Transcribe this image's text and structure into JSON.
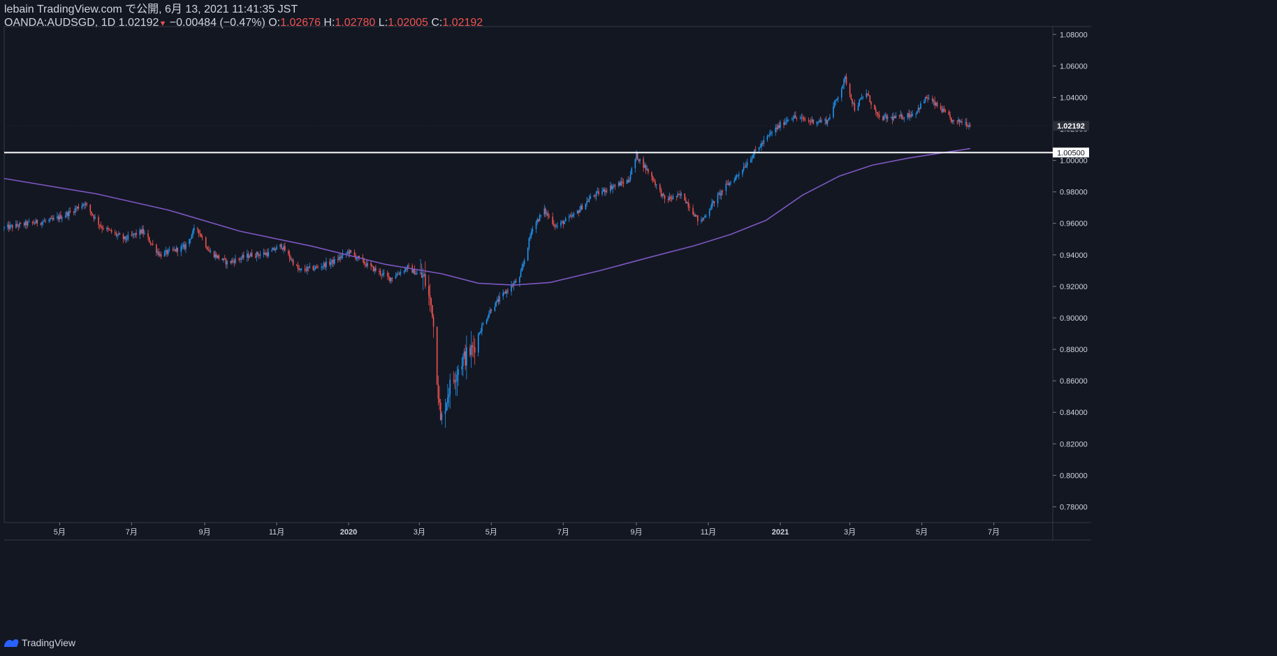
{
  "header": {
    "published": "lebain TradingView.com で公開, 6月 13, 2021 11:41:35 JST",
    "symbol": "OANDA:AUDSGD, 1D",
    "last": "1.02192",
    "change": "−0.00484 (−0.47%)",
    "o_label": "O:",
    "o": "1.02676",
    "h_label": "H:",
    "h": "1.02780",
    "l_label": "L:",
    "l": "1.02005",
    "c_label": "C:",
    "c": "1.02192"
  },
  "footer": {
    "brand": "TradingView"
  },
  "colors": {
    "background": "#131722",
    "up": "#2196f3",
    "down": "#ef5350",
    "ma": "#7e57c2",
    "hline": "#ffffff",
    "axis_text": "#d1d4dc"
  },
  "chart_data": {
    "type": "candlestick",
    "x_axis": {
      "labels": [
        "5月",
        "7月",
        "9月",
        "11月",
        "2020",
        "3月",
        "5月",
        "7月",
        "9月",
        "11月",
        "2021",
        "3月",
        "5月",
        "7月"
      ],
      "dates": [
        "2019-05-01",
        "2019-07-01",
        "2019-09-01",
        "2019-11-01",
        "2020-01-01",
        "2020-03-01",
        "2020-05-01",
        "2020-07-01",
        "2020-09-01",
        "2020-11-01",
        "2021-01-01",
        "2021-03-01",
        "2021-05-01",
        "2021-07-01"
      ],
      "bold": [
        "2020",
        "2021"
      ],
      "range": [
        "2019-03-15",
        "2021-08-20"
      ]
    },
    "y_axis": {
      "range": [
        0.77,
        1.085
      ],
      "ticks": [
        "1.08000",
        "1.06000",
        "1.04000",
        "1.02000",
        "1.00000",
        "0.98000",
        "0.96000",
        "0.94000",
        "0.92000",
        "0.90000",
        "0.88000",
        "0.86000",
        "0.84000",
        "0.82000",
        "0.80000",
        "0.78000"
      ]
    },
    "last_price": {
      "value": 1.02192,
      "label": "1.02192"
    },
    "horizontal_line": {
      "value": 1.005,
      "label": "1.00500"
    },
    "price_path": [
      [
        "2019-03-15",
        0.957
      ],
      [
        "2019-04-05",
        0.96
      ],
      [
        "2019-04-25",
        0.962
      ],
      [
        "2019-05-10",
        0.967
      ],
      [
        "2019-05-22",
        0.973
      ],
      [
        "2019-06-05",
        0.958
      ],
      [
        "2019-06-25",
        0.95
      ],
      [
        "2019-07-10",
        0.955
      ],
      [
        "2019-07-25",
        0.94
      ],
      [
        "2019-08-15",
        0.945
      ],
      [
        "2019-08-25",
        0.958
      ],
      [
        "2019-09-05",
        0.942
      ],
      [
        "2019-09-20",
        0.935
      ],
      [
        "2019-10-10",
        0.94
      ],
      [
        "2019-10-25",
        0.941
      ],
      [
        "2019-11-05",
        0.946
      ],
      [
        "2019-11-20",
        0.93
      ],
      [
        "2019-12-05",
        0.932
      ],
      [
        "2019-12-20",
        0.936
      ],
      [
        "2020-01-01",
        0.942
      ],
      [
        "2020-01-20",
        0.932
      ],
      [
        "2020-02-05",
        0.925
      ],
      [
        "2020-02-20",
        0.932
      ],
      [
        "2020-03-05",
        0.925
      ],
      [
        "2020-03-12",
        0.905
      ],
      [
        "2020-03-19",
        0.833
      ],
      [
        "2020-03-26",
        0.855
      ],
      [
        "2020-04-05",
        0.872
      ],
      [
        "2020-04-15",
        0.88
      ],
      [
        "2020-04-22",
        0.893
      ],
      [
        "2020-05-01",
        0.906
      ],
      [
        "2020-05-15",
        0.918
      ],
      [
        "2020-05-25",
        0.925
      ],
      [
        "2020-06-05",
        0.958
      ],
      [
        "2020-06-15",
        0.968
      ],
      [
        "2020-06-25",
        0.958
      ],
      [
        "2020-07-10",
        0.965
      ],
      [
        "2020-07-25",
        0.977
      ],
      [
        "2020-08-10",
        0.983
      ],
      [
        "2020-08-25",
        0.987
      ],
      [
        "2020-09-01",
        1.003
      ],
      [
        "2020-09-12",
        0.992
      ],
      [
        "2020-09-25",
        0.975
      ],
      [
        "2020-10-10",
        0.978
      ],
      [
        "2020-10-25",
        0.96
      ],
      [
        "2020-11-05",
        0.973
      ],
      [
        "2020-11-15",
        0.983
      ],
      [
        "2020-11-25",
        0.99
      ],
      [
        "2020-12-10",
        1.005
      ],
      [
        "2020-12-25",
        1.018
      ],
      [
        "2021-01-10",
        1.028
      ],
      [
        "2021-01-25",
        1.025
      ],
      [
        "2021-02-10",
        1.025
      ],
      [
        "2021-02-25",
        1.052
      ],
      [
        "2021-03-05",
        1.033
      ],
      [
        "2021-03-15",
        1.043
      ],
      [
        "2021-03-25",
        1.027
      ],
      [
        "2021-04-10",
        1.027
      ],
      [
        "2021-04-25",
        1.03
      ],
      [
        "2021-05-05",
        1.04
      ],
      [
        "2021-05-18",
        1.032
      ],
      [
        "2021-05-28",
        1.024
      ],
      [
        "2021-06-05",
        1.025
      ],
      [
        "2021-06-11",
        1.0219
      ]
    ],
    "ma_path": [
      [
        "2019-03-15",
        0.9885
      ],
      [
        "2019-06-01",
        0.9788
      ],
      [
        "2019-08-01",
        0.9685
      ],
      [
        "2019-10-01",
        0.955
      ],
      [
        "2019-12-01",
        0.9455
      ],
      [
        "2020-02-01",
        0.934
      ],
      [
        "2020-03-20",
        0.928
      ],
      [
        "2020-04-20",
        0.922
      ],
      [
        "2020-05-20",
        0.9208
      ],
      [
        "2020-06-20",
        0.9225
      ],
      [
        "2020-08-01",
        0.93
      ],
      [
        "2020-09-15",
        0.939
      ],
      [
        "2020-10-20",
        0.9458
      ],
      [
        "2020-11-20",
        0.953
      ],
      [
        "2020-12-20",
        0.962
      ],
      [
        "2021-01-20",
        0.978
      ],
      [
        "2021-02-20",
        0.99
      ],
      [
        "2021-03-20",
        0.997
      ],
      [
        "2021-04-20",
        1.0015
      ],
      [
        "2021-05-20",
        1.005
      ],
      [
        "2021-06-11",
        1.0075
      ]
    ]
  }
}
